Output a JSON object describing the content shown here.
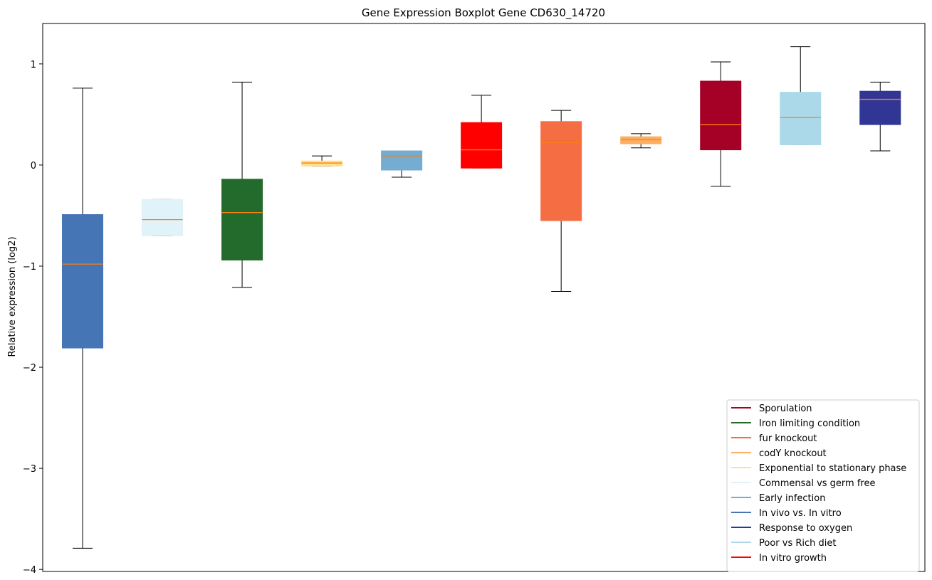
{
  "chart_data": {
    "type": "box",
    "title": "Gene Expression Boxplot Gene CD630_14720",
    "xlabel": "",
    "ylabel": "Relative expression (log2)",
    "ylim": [
      -4.02,
      1.4
    ],
    "yticks": [
      1,
      0,
      -1,
      -2,
      -3,
      -4
    ],
    "ytick_labels": [
      "1",
      "0",
      "−1",
      "−2",
      "−3",
      "−4"
    ],
    "grid": false,
    "legend_position": "lower-right",
    "median_color": "#ff7f0e",
    "boxes": [
      {
        "legend_ref": "In vivo vs. In vitro",
        "color": "#4575b4",
        "whisker_low": -3.79,
        "q1": -1.81,
        "median": -0.98,
        "q3": -0.49,
        "whisker_high": 0.76
      },
      {
        "legend_ref": "Commensal vs germ free",
        "color": "#e0f3f8",
        "whisker_low": -0.7,
        "q1": -0.7,
        "median": -0.54,
        "q3": -0.34,
        "whisker_high": -0.34
      },
      {
        "legend_ref": "Iron limiting condition",
        "color": "#236b2d",
        "whisker_low": -1.21,
        "q1": -0.94,
        "median": -0.47,
        "q3": -0.14,
        "whisker_high": 0.82
      },
      {
        "legend_ref": "Exponential to stationary phase",
        "color": "#fee090",
        "whisker_low": -0.01,
        "q1": -0.01,
        "median": 0.02,
        "q3": 0.04,
        "whisker_high": 0.09
      },
      {
        "legend_ref": "Early infection",
        "color": "#74add1",
        "whisker_low": -0.12,
        "q1": -0.05,
        "median": 0.09,
        "q3": 0.14,
        "whisker_high": 0.14
      },
      {
        "legend_ref": "In vitro growth",
        "color": "#ff0000",
        "whisker_low": -0.03,
        "q1": -0.03,
        "median": 0.15,
        "q3": 0.42,
        "whisker_high": 0.69
      },
      {
        "legend_ref": "fur knockout",
        "color": "#f46d43",
        "whisker_low": -1.25,
        "q1": -0.55,
        "median": 0.22,
        "q3": 0.43,
        "whisker_high": 0.54
      },
      {
        "legend_ref": "codY knockout",
        "color": "#fdae61",
        "whisker_low": 0.17,
        "q1": 0.21,
        "median": 0.25,
        "q3": 0.28,
        "whisker_high": 0.31
      },
      {
        "legend_ref": "Sporulation",
        "color": "#a50026",
        "whisker_low": -0.21,
        "q1": 0.15,
        "median": 0.4,
        "q3": 0.83,
        "whisker_high": 1.02
      },
      {
        "legend_ref": "Poor vs Rich diet",
        "color": "#abd9e9",
        "whisker_low": 0.2,
        "q1": 0.2,
        "median": 0.47,
        "q3": 0.72,
        "whisker_high": 1.17
      },
      {
        "legend_ref": "Response to oxygen",
        "color": "#313695",
        "whisker_low": 0.14,
        "q1": 0.4,
        "median": 0.65,
        "q3": 0.73,
        "whisker_high": 0.82
      }
    ],
    "legend": [
      {
        "label": "Sporulation",
        "color": "#a50026"
      },
      {
        "label": "Iron limiting condition",
        "color": "#236b2d"
      },
      {
        "label": "fur knockout",
        "color": "#f46d43"
      },
      {
        "label": "codY knockout",
        "color": "#fdae61"
      },
      {
        "label": "Exponential to stationary phase",
        "color": "#fee090"
      },
      {
        "label": "Commensal vs germ free",
        "color": "#e0f3f8"
      },
      {
        "label": "Early infection",
        "color": "#74add1"
      },
      {
        "label": "In vivo vs. In vitro",
        "color": "#4575b4"
      },
      {
        "label": "Response to oxygen",
        "color": "#313695"
      },
      {
        "label": "Poor vs Rich diet",
        "color": "#abd9e9"
      },
      {
        "label": "In vitro growth",
        "color": "#ff0000"
      }
    ]
  }
}
